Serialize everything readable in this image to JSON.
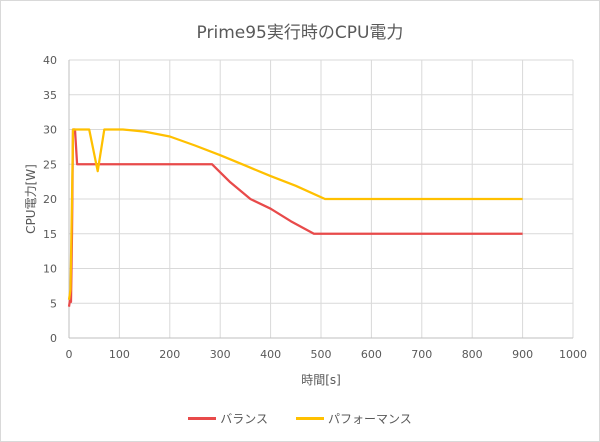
{
  "chart_data": {
    "type": "line",
    "title": "Prime95実行時のCPU電力",
    "xlabel": "時間[s]",
    "ylabel": "CPU電力[W]",
    "xlim": [
      0,
      1000
    ],
    "ylim": [
      0,
      40
    ],
    "xticks": [
      0,
      100,
      200,
      300,
      400,
      500,
      600,
      700,
      800,
      900,
      1000
    ],
    "yticks": [
      0,
      5,
      10,
      15,
      20,
      25,
      30,
      35,
      40
    ],
    "grid": true,
    "legend_position": "bottom",
    "series": [
      {
        "name": "バランス",
        "color": "#E84A4A",
        "points": [
          [
            0,
            4.5
          ],
          [
            2,
            5.5
          ],
          [
            4,
            5.2
          ],
          [
            6,
            15
          ],
          [
            8,
            30
          ],
          [
            12,
            30
          ],
          [
            16,
            25
          ],
          [
            100,
            25
          ],
          [
            200,
            25
          ],
          [
            284,
            25
          ],
          [
            320,
            22.4
          ],
          [
            360,
            20
          ],
          [
            400,
            18.6
          ],
          [
            440,
            16.8
          ],
          [
            486,
            15
          ],
          [
            600,
            15
          ],
          [
            700,
            15
          ],
          [
            800,
            15
          ],
          [
            900,
            15
          ]
        ]
      },
      {
        "name": "パフォーマンス",
        "color": "#FFC000",
        "points": [
          [
            0,
            5.5
          ],
          [
            3,
            7
          ],
          [
            6,
            20
          ],
          [
            8,
            30
          ],
          [
            20,
            30
          ],
          [
            40,
            30
          ],
          [
            57,
            24
          ],
          [
            70,
            30
          ],
          [
            107,
            30
          ],
          [
            150,
            29.7
          ],
          [
            200,
            29
          ],
          [
            250,
            27.7
          ],
          [
            300,
            26.3
          ],
          [
            350,
            24.8
          ],
          [
            400,
            23.3
          ],
          [
            450,
            21.9
          ],
          [
            508,
            20
          ],
          [
            600,
            20
          ],
          [
            700,
            20
          ],
          [
            800,
            20
          ],
          [
            900,
            20
          ]
        ]
      }
    ]
  }
}
